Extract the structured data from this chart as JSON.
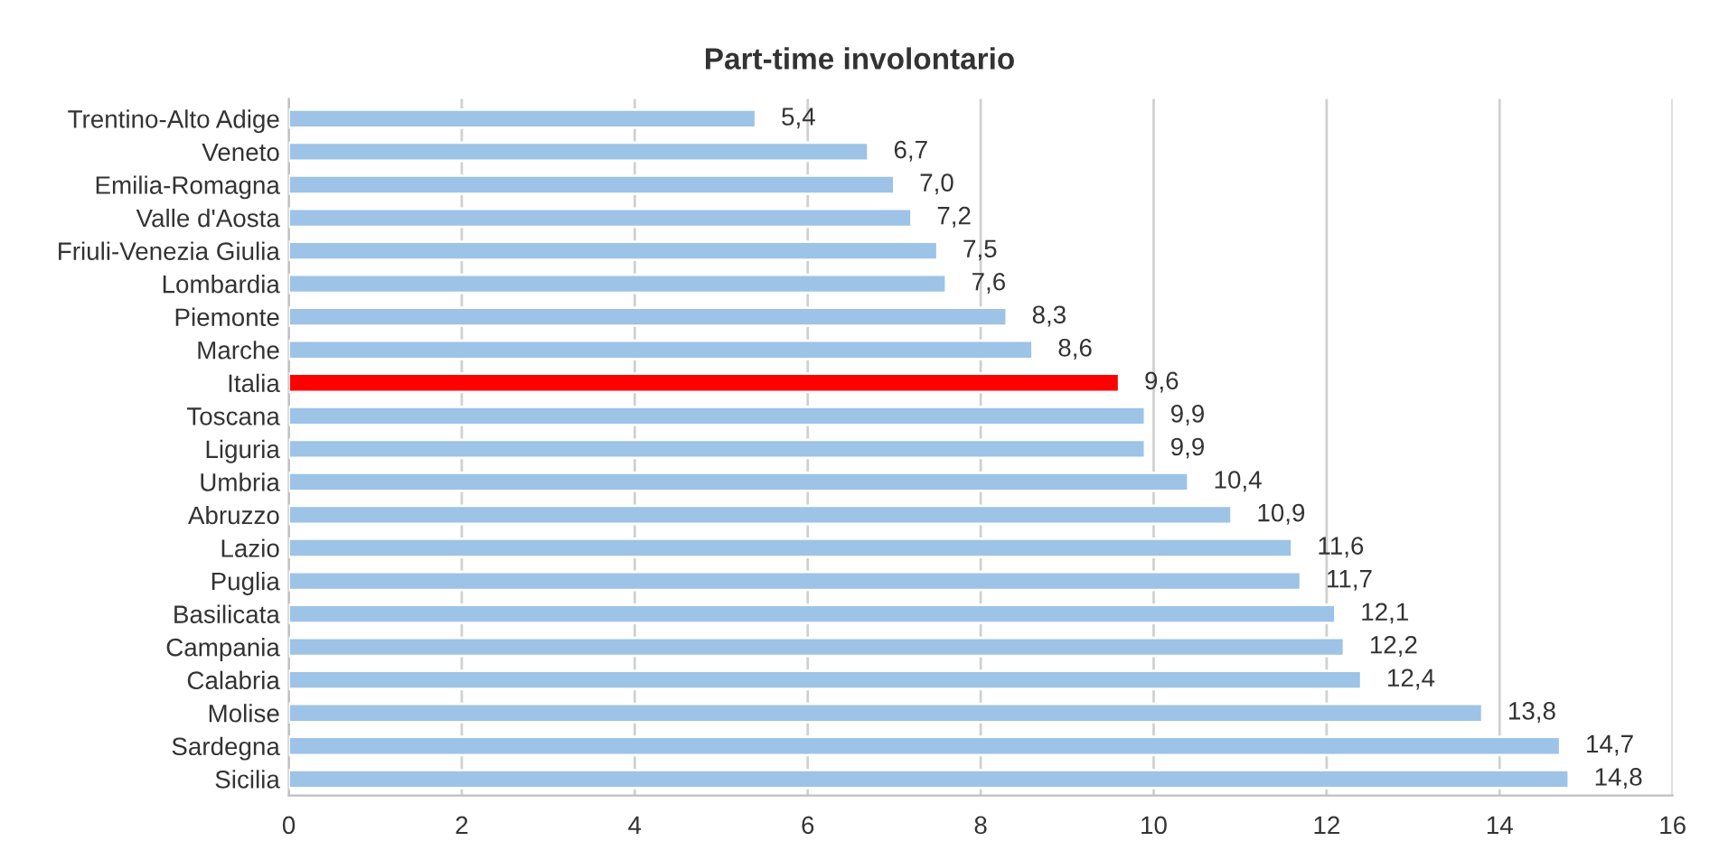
{
  "chart_data": {
    "type": "bar",
    "orientation": "horizontal",
    "title": "Part-time involontario",
    "categories": [
      "Trentino-Alto Adige",
      "Veneto",
      "Emilia-Romagna",
      "Valle d'Aosta",
      "Friuli-Venezia Giulia",
      "Lombardia",
      "Piemonte",
      "Marche",
      "Italia",
      "Toscana",
      "Liguria",
      "Umbria",
      "Abruzzo",
      "Lazio",
      "Puglia",
      "Basilicata",
      "Campania",
      "Calabria",
      "Molise",
      "Sardegna",
      "Sicilia"
    ],
    "values": [
      5.4,
      6.7,
      7.0,
      7.2,
      7.5,
      7.6,
      8.3,
      8.6,
      9.6,
      9.9,
      9.9,
      10.4,
      10.9,
      11.6,
      11.7,
      12.1,
      12.2,
      12.4,
      13.8,
      14.7,
      14.8
    ],
    "value_labels": [
      "5,4",
      "6,7",
      "7,0",
      "7,2",
      "7,5",
      "7,6",
      "8,3",
      "8,6",
      "9,6",
      "9,9",
      "9,9",
      "10,4",
      "10,9",
      "11,6",
      "11,7",
      "12,1",
      "12,2",
      "12,4",
      "13,8",
      "14,7",
      "14,8"
    ],
    "colors": [
      "#9dc3e6",
      "#9dc3e6",
      "#9dc3e6",
      "#9dc3e6",
      "#9dc3e6",
      "#9dc3e6",
      "#9dc3e6",
      "#9dc3e6",
      "#ff0000",
      "#9dc3e6",
      "#9dc3e6",
      "#9dc3e6",
      "#9dc3e6",
      "#9dc3e6",
      "#9dc3e6",
      "#9dc3e6",
      "#9dc3e6",
      "#9dc3e6",
      "#9dc3e6",
      "#9dc3e6",
      "#9dc3e6"
    ],
    "xlim": [
      0,
      16
    ],
    "xticks": [
      0,
      2,
      4,
      6,
      8,
      10,
      12,
      14,
      16
    ],
    "grid": "x",
    "legend": false
  }
}
